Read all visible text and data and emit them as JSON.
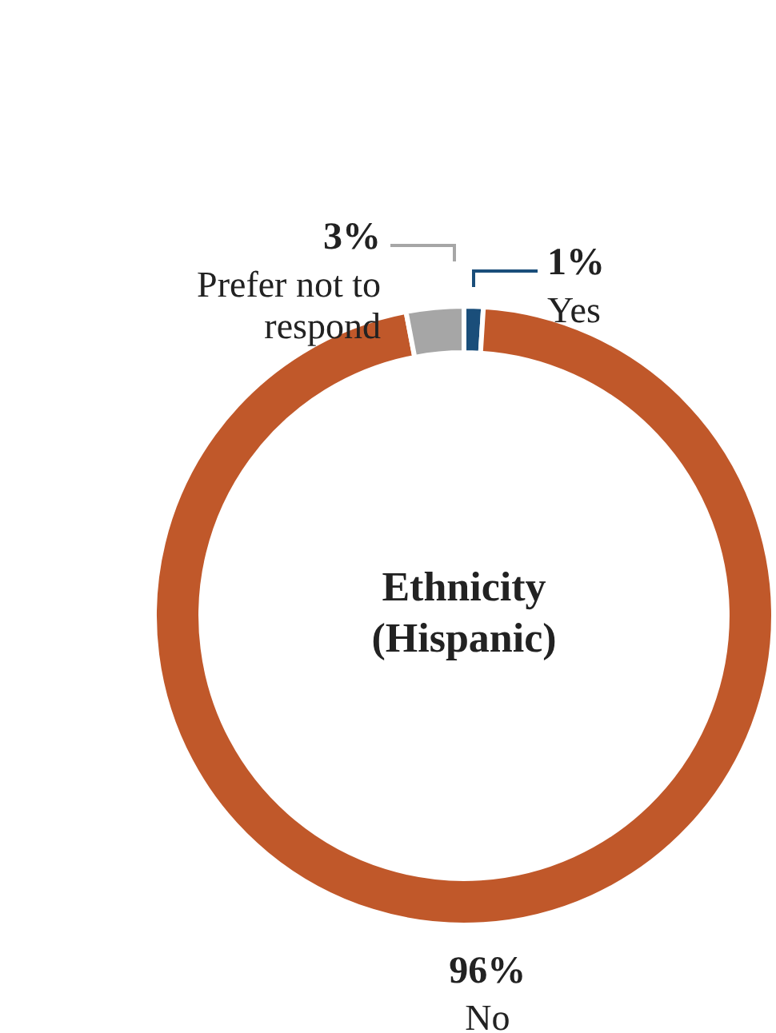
{
  "chart_data": {
    "type": "donut",
    "title": "Ethnicity (Hispanic)",
    "categories": [
      "Yes",
      "No",
      "Prefer not to respond"
    ],
    "values": [
      1,
      96,
      3
    ],
    "colors": [
      "#1a4e7a",
      "#c0582a",
      "#a6a6a6"
    ],
    "value_labels": [
      "1%",
      "96%",
      "3%"
    ],
    "legend": false
  }
}
